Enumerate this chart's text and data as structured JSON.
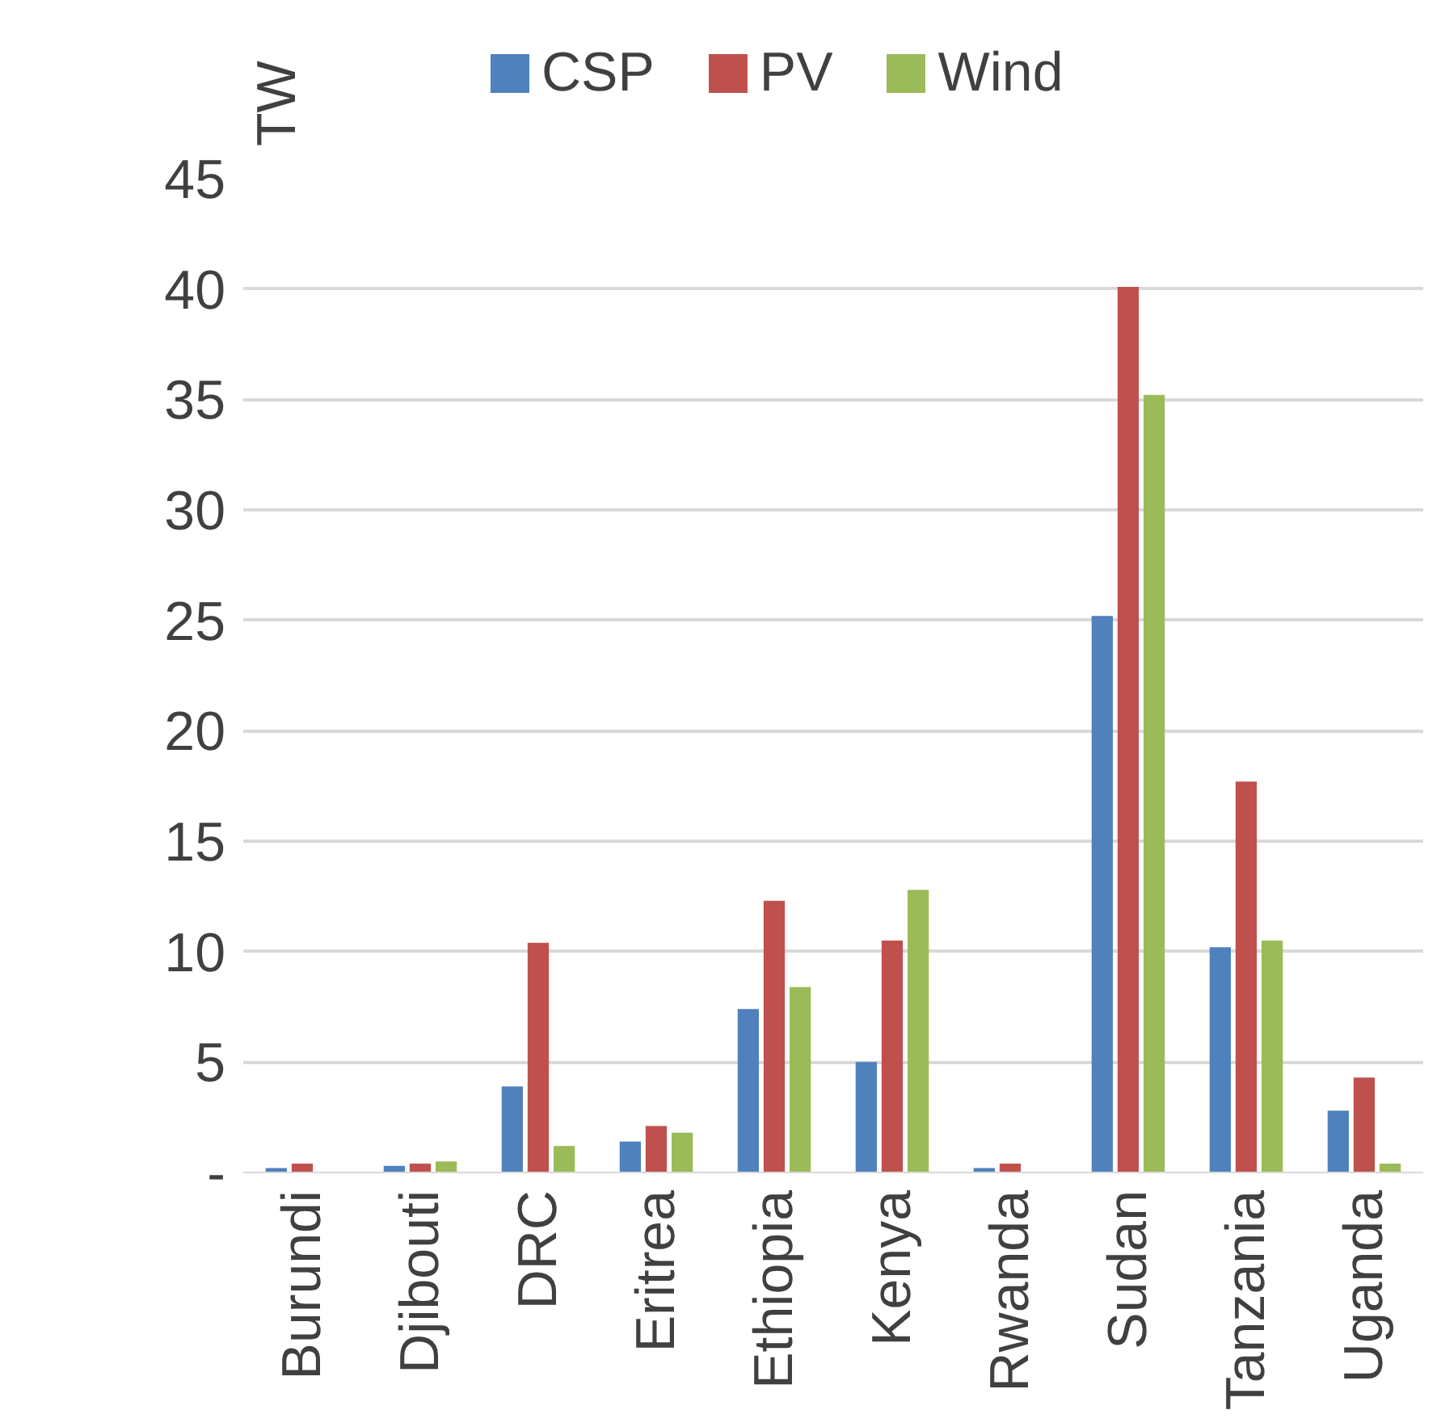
{
  "chart_data": {
    "type": "bar",
    "ylabel": "TW",
    "categories": [
      "Burundi",
      "Djibouti",
      "DRC",
      "Eritrea",
      "Ethiopia",
      "Kenya",
      "Rwanda",
      "Sudan",
      "Tanzania",
      "Uganda"
    ],
    "series": [
      {
        "name": "CSP",
        "color": "#4f81bd",
        "values": [
          0.2,
          0.3,
          3.9,
          1.4,
          7.4,
          5.0,
          0.2,
          25.2,
          10.2,
          2.8
        ]
      },
      {
        "name": "PV",
        "color": "#c0504d",
        "values": [
          0.4,
          0.4,
          10.4,
          2.1,
          12.3,
          10.5,
          0.4,
          40.1,
          17.7,
          4.3
        ]
      },
      {
        "name": "Wind",
        "color": "#9bbb59",
        "values": [
          0,
          0.5,
          1.2,
          1.8,
          8.4,
          12.8,
          0,
          35.2,
          10.5,
          0.4
        ]
      }
    ],
    "ylim": [
      0,
      45
    ],
    "yticks": [
      {
        "value": 0,
        "label": "-"
      },
      5,
      10,
      15,
      20,
      25,
      30,
      35,
      40,
      45
    ],
    "grid": "y",
    "legend": "top"
  }
}
